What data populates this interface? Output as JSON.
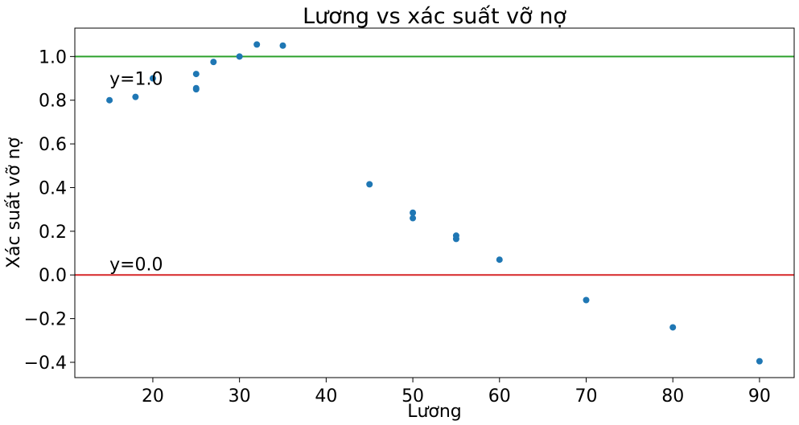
{
  "chart_data": {
    "type": "scatter",
    "title": "Lương vs xác suất vỡ nợ",
    "xlabel": "Lương",
    "ylabel": "Xác suất vỡ nợ",
    "xlim": [
      11,
      94
    ],
    "ylim": [
      -0.47,
      1.13
    ],
    "xticks": [
      20,
      30,
      40,
      50,
      60,
      70,
      80,
      90
    ],
    "yticks": [
      -0.4,
      -0.2,
      0.0,
      0.2,
      0.4,
      0.6,
      0.8,
      1.0
    ],
    "grid": false,
    "point_color": "#1f77b4",
    "series": [
      {
        "x": [
          15,
          18,
          20,
          25,
          25,
          25,
          27,
          30,
          32,
          35,
          45,
          50,
          50,
          55,
          55,
          60,
          70,
          80,
          90
        ],
        "y": [
          0.8,
          0.815,
          0.9,
          0.855,
          0.85,
          0.92,
          0.975,
          1.0,
          1.055,
          1.05,
          0.415,
          0.285,
          0.26,
          0.18,
          0.165,
          0.07,
          -0.115,
          -0.24,
          -0.395
        ]
      }
    ],
    "reference_lines": [
      {
        "y": 1.0,
        "color": "#2ca02c",
        "label": "y=1.0"
      },
      {
        "y": 0.0,
        "color": "#d62728",
        "label": "y=0.0"
      }
    ]
  }
}
